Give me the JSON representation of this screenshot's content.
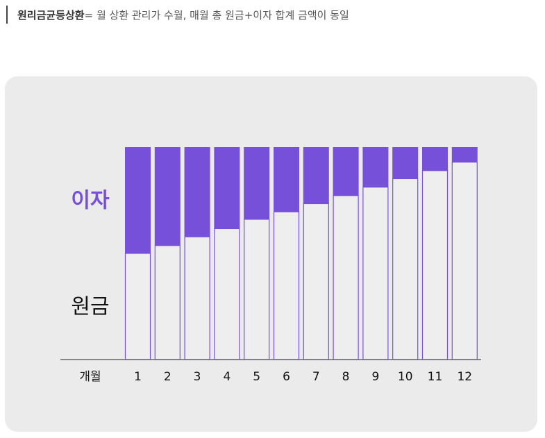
{
  "note": {
    "term": "원리금균등상환",
    "definition": " = 월 상환 관리가 수월, 매월 총 원금+이자 합계 금액이 동일"
  },
  "colors": {
    "interest": "#7650d8",
    "principal": "#eeeeee",
    "principal_border": "#7650d8",
    "axis": "#666666",
    "label_principal": "#111111"
  },
  "chart_data": {
    "type": "bar",
    "stacked": true,
    "xlabel": "개월",
    "categories": [
      "1",
      "2",
      "3",
      "4",
      "5",
      "6",
      "7",
      "8",
      "9",
      "10",
      "11",
      "12"
    ],
    "series": [
      {
        "name": "원금",
        "values": [
          34,
          36.5,
          39.3,
          41.9,
          44.9,
          47.3,
          49.9,
          52.5,
          55.2,
          57.9,
          60.5,
          63.2
        ]
      },
      {
        "name": "이자",
        "values": [
          34,
          31.5,
          28.7,
          26.1,
          23.1,
          20.7,
          18.1,
          15.5,
          12.8,
          10.1,
          7.5,
          4.8
        ]
      }
    ],
    "ylim": [
      0,
      68
    ],
    "grid": false
  }
}
